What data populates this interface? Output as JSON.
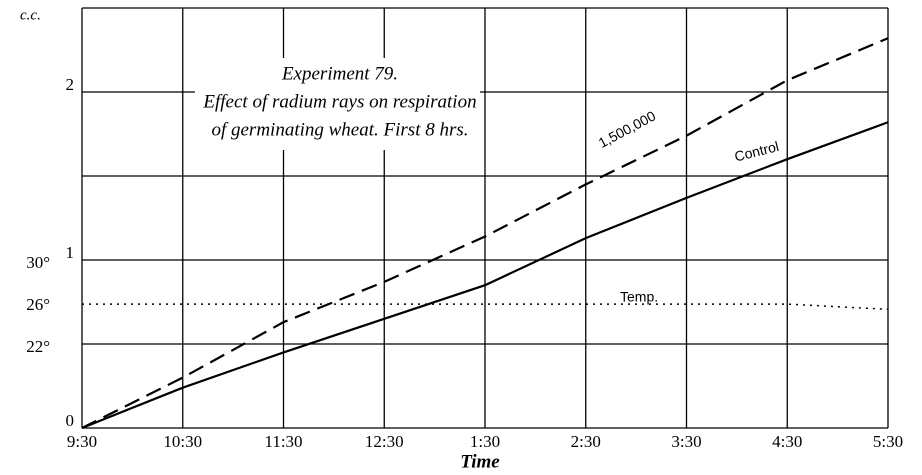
{
  "chart_data": {
    "type": "line",
    "title": [
      "Experiment 79.",
      "Effect of radium rays on respiration",
      "of germinating wheat.   First 8 hrs."
    ],
    "y_label": "c.c.",
    "x_label": "Time",
    "categories": [
      "9:30",
      "10:30",
      "11:30",
      "12:30",
      "1:30",
      "2:30",
      "3:30",
      "4:30",
      "5:30"
    ],
    "ylim": [
      0,
      2.5
    ],
    "yticks": [
      0,
      1,
      2
    ],
    "minor_yticks": [
      0.5,
      1.5,
      2.5
    ],
    "y2lim": [
      14,
      54
    ],
    "y2ticks": [
      {
        "value": 30,
        "label": "30°"
      },
      {
        "value": 26,
        "label": "26°"
      },
      {
        "value": 22,
        "label": "22°"
      }
    ],
    "grid": true,
    "series": [
      {
        "name": "1,500,000",
        "color": "#000000",
        "dash": "dashed",
        "values": [
          0,
          0.3,
          0.63,
          0.87,
          1.14,
          1.45,
          1.74,
          2.07,
          2.32
        ]
      },
      {
        "name": "Control",
        "color": "#000000",
        "dash": "solid",
        "values": [
          0,
          0.24,
          0.45,
          0.65,
          0.85,
          1.13,
          1.37,
          1.6,
          1.82
        ]
      },
      {
        "name": "Temp.",
        "color": "#000000",
        "dash": "dotted",
        "axis": "y2",
        "values": [
          25.8,
          25.8,
          25.8,
          25.8,
          25.8,
          25.8,
          25.8,
          25.8,
          25.3
        ]
      }
    ]
  }
}
